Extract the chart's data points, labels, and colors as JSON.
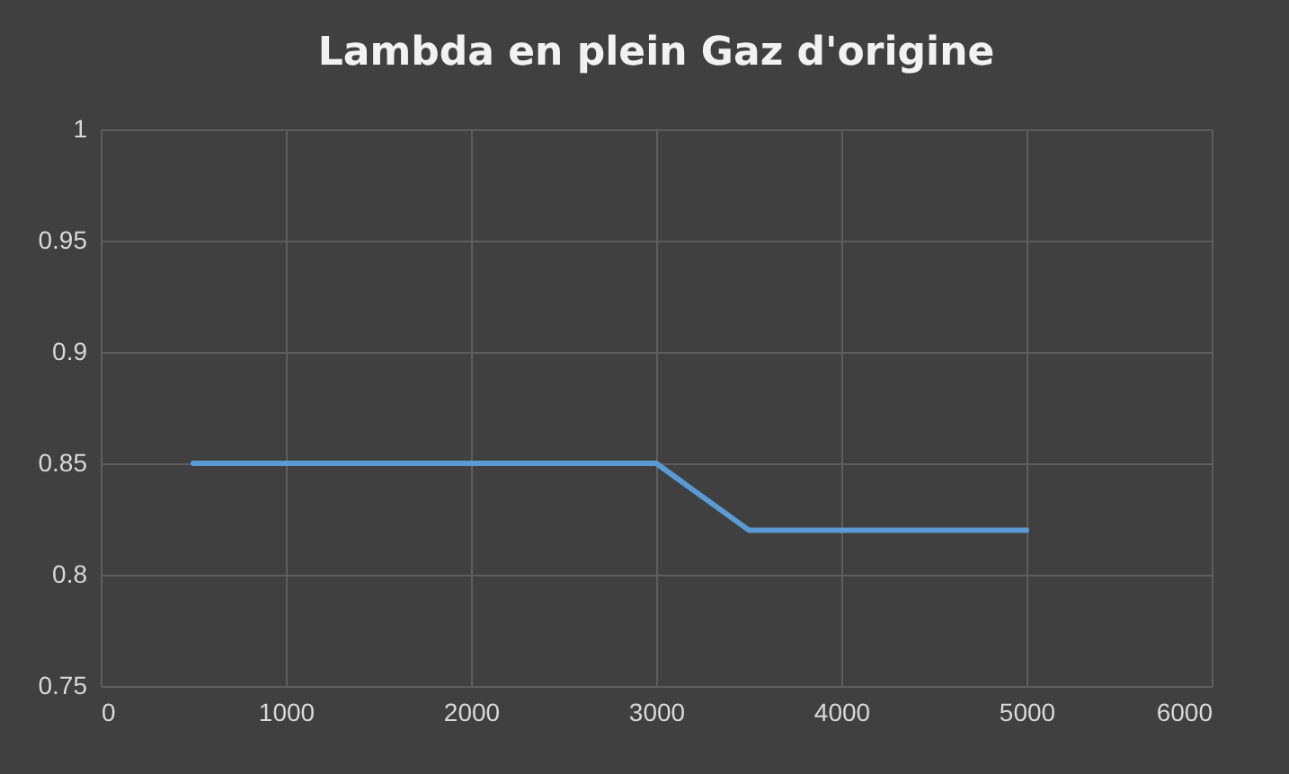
{
  "chart_data": {
    "type": "line",
    "title": "Lambda en plein Gaz d'origine",
    "x": [
      500,
      1000,
      1500,
      2000,
      2500,
      3000,
      3500,
      4000,
      4500,
      5000
    ],
    "series": [
      {
        "color": "#5b9bd5",
        "values": [
          0.85,
          0.85,
          0.85,
          0.85,
          0.85,
          0.85,
          0.82,
          0.82,
          0.82,
          0.82
        ]
      }
    ],
    "xlim": [
      0,
      6000
    ],
    "ylim": [
      0.75,
      1
    ],
    "xticks": [
      0,
      1000,
      2000,
      3000,
      4000,
      5000,
      6000
    ],
    "yticks": [
      0.75,
      0.8,
      0.85,
      0.9,
      0.95,
      1
    ],
    "grid": true
  }
}
